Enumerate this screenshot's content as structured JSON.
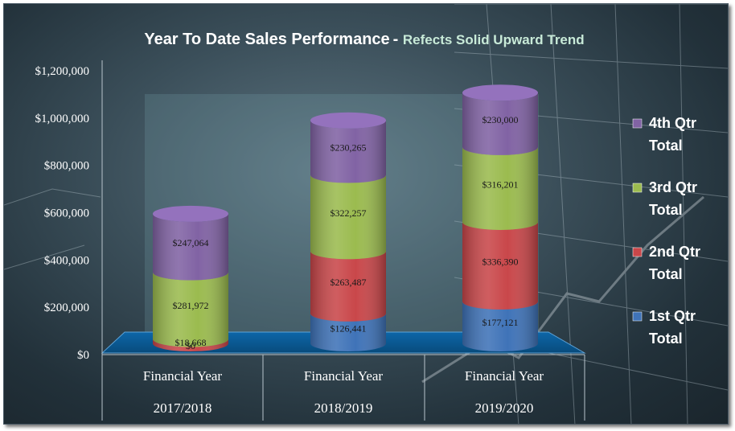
{
  "chart_data": {
    "type": "bar",
    "stacked": true,
    "style": "3d-cylinder",
    "title": "Year To Date Sales Performance",
    "subtitle": "Refects Solid Upward Trend",
    "categories": [
      {
        "line1": "Financial Year",
        "line2": "2017/2018"
      },
      {
        "line1": "Financial Year",
        "line2": "2018/2019"
      },
      {
        "line1": "Financial Year",
        "line2": "2019/2020"
      }
    ],
    "series": [
      {
        "name": "1st Qtr Total",
        "color": "#3f73b8",
        "values": [
          0,
          126441,
          177121
        ],
        "labels": [
          "$0",
          "$126,441",
          "$177,121"
        ]
      },
      {
        "name": "2nd Qtr Total",
        "color": "#c9474a",
        "values": [
          18668,
          263487,
          336390
        ],
        "labels": [
          "$18,668",
          "$263,487",
          "$336,390"
        ]
      },
      {
        "name": "3rd Qtr Total",
        "color": "#9bbb4f",
        "values": [
          281972,
          322257,
          316201
        ],
        "labels": [
          "$281,972",
          "$322,257",
          "$316,201"
        ]
      },
      {
        "name": "4th Qtr Total",
        "color": "#8163a4",
        "values": [
          247064,
          230265,
          230000
        ],
        "labels": [
          "$247,064",
          "$230,265",
          "$230,000"
        ]
      }
    ],
    "ylim": [
      0,
      1200000
    ],
    "yticks": [
      "$0",
      "$200,000",
      "$400,000",
      "$600,000",
      "$800,000",
      "$1,000,000",
      "$1,200,000"
    ],
    "legend": {
      "position": "right",
      "order": [
        3,
        2,
        1,
        0
      ],
      "entries": [
        {
          "line1": "1st Qtr",
          "line2": "Total"
        },
        {
          "line1": "2nd Qtr",
          "line2": "Total"
        },
        {
          "line1": "3rd Qtr",
          "line2": "Total"
        },
        {
          "line1": "4th Qtr",
          "line2": "Total"
        }
      ]
    },
    "grid": false,
    "colors": {
      "floor": "#0b5a96",
      "floor_edge": "#5da2d6",
      "axis": "#b8c4cc"
    }
  }
}
